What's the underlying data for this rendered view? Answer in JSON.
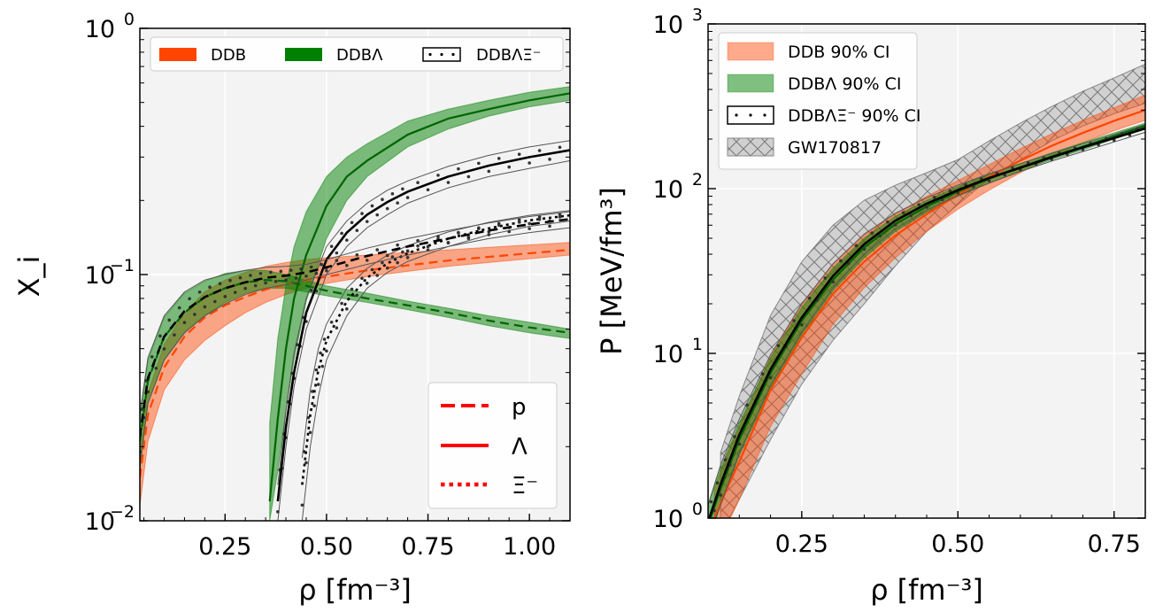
{
  "chart_data": [
    {
      "type": "line",
      "xlabel": "ρ [fm⁻³]",
      "ylabel": "X_i",
      "xlim": [
        0.04,
        1.1
      ],
      "ylim": [
        0.01,
        1.0
      ],
      "yscale": "log",
      "grid": true,
      "xticks": [
        0.25,
        0.5,
        0.75,
        1.0
      ],
      "xtick_labels": [
        "0.25",
        "0.50",
        "0.75",
        "1.00"
      ],
      "yticks": [
        0.01,
        0.1,
        1.0
      ],
      "ytick_labels": [
        {
          "base": "10",
          "exp": "−2"
        },
        {
          "base": "10",
          "exp": "−1"
        },
        {
          "base": "10",
          "exp": "0"
        }
      ],
      "legend_models": {
        "placement": "top",
        "entries": [
          {
            "label": "DDB",
            "color": "#ff4500",
            "style": "filled band"
          },
          {
            "label": "DDBΛ",
            "color": "#008000",
            "style": "filled band"
          },
          {
            "label": "DDBΛΞ⁻",
            "color": "#000000",
            "style": "dotted band"
          }
        ]
      },
      "legend_species": {
        "placement": "lower-right",
        "entries": [
          {
            "label": "p",
            "linestyle": "dashed",
            "color": "#ff0000"
          },
          {
            "label": "Λ",
            "linestyle": "solid",
            "color": "#ff0000"
          },
          {
            "label": "Ξ⁻",
            "linestyle": "dotted",
            "color": "#ff0000"
          }
        ]
      },
      "bands": [
        {
          "model": "DDB",
          "species": "p",
          "color": "#ff4500",
          "x": [
            0.04,
            0.06,
            0.1,
            0.15,
            0.2,
            0.25,
            0.3,
            0.35,
            0.4,
            0.45,
            0.5,
            0.6,
            0.7,
            0.8,
            0.9,
            1.0,
            1.1
          ],
          "low": [
            0.0115,
            0.021,
            0.034,
            0.045,
            0.054,
            0.062,
            0.07,
            0.077,
            0.083,
            0.088,
            0.092,
            0.098,
            0.103,
            0.108,
            0.112,
            0.116,
            0.12
          ],
          "high": [
            0.019,
            0.033,
            0.052,
            0.07,
            0.085,
            0.095,
            0.102,
            0.108,
            0.112,
            0.115,
            0.117,
            0.12,
            0.123,
            0.126,
            0.129,
            0.132,
            0.135
          ],
          "mid": [
            0.015,
            0.027,
            0.042,
            0.056,
            0.067,
            0.075,
            0.081,
            0.087,
            0.091,
            0.095,
            0.098,
            0.104,
            0.109,
            0.114,
            0.118,
            0.122,
            0.126
          ]
        },
        {
          "model": "DDBΛ",
          "species": "p",
          "color": "#008000",
          "x": [
            0.04,
            0.06,
            0.1,
            0.15,
            0.2,
            0.25,
            0.3,
            0.35,
            0.4,
            0.45,
            0.5,
            0.6,
            0.7,
            0.8,
            0.9,
            1.0,
            1.1
          ],
          "low": [
            0.016,
            0.03,
            0.045,
            0.058,
            0.068,
            0.077,
            0.084,
            0.088,
            0.088,
            0.085,
            0.082,
            0.077,
            0.072,
            0.067,
            0.062,
            0.058,
            0.055
          ],
          "high": [
            0.026,
            0.045,
            0.067,
            0.084,
            0.094,
            0.101,
            0.104,
            0.104,
            0.1,
            0.095,
            0.09,
            0.084,
            0.078,
            0.073,
            0.068,
            0.064,
            0.06
          ],
          "mid": [
            0.021,
            0.037,
            0.056,
            0.07,
            0.081,
            0.088,
            0.093,
            0.095,
            0.094,
            0.09,
            0.086,
            0.08,
            0.075,
            0.07,
            0.065,
            0.061,
            0.058
          ]
        },
        {
          "model": "DDBΛ",
          "species": "Λ",
          "color": "#008000",
          "x": [
            0.36,
            0.38,
            0.4,
            0.42,
            0.45,
            0.5,
            0.55,
            0.6,
            0.7,
            0.8,
            0.9,
            1.0,
            1.1
          ],
          "low": [
            0.01,
            0.016,
            0.028,
            0.045,
            0.078,
            0.14,
            0.2,
            0.25,
            0.33,
            0.39,
            0.44,
            0.48,
            0.51
          ],
          "high": [
            0.025,
            0.055,
            0.09,
            0.13,
            0.18,
            0.25,
            0.3,
            0.34,
            0.42,
            0.47,
            0.51,
            0.55,
            0.58
          ],
          "mid": [
            0.012,
            0.026,
            0.05,
            0.08,
            0.12,
            0.19,
            0.25,
            0.29,
            0.37,
            0.43,
            0.47,
            0.51,
            0.545
          ]
        },
        {
          "model": "DDBΛΞ⁻",
          "species": "Λ",
          "color": "#000000",
          "x": [
            0.38,
            0.4,
            0.42,
            0.45,
            0.5,
            0.55,
            0.6,
            0.65,
            0.7,
            0.8,
            0.9,
            1.0,
            1.1
          ],
          "low": [
            0.01,
            0.02,
            0.035,
            0.06,
            0.1,
            0.13,
            0.155,
            0.175,
            0.195,
            0.225,
            0.25,
            0.27,
            0.29
          ],
          "high": [
            0.014,
            0.028,
            0.048,
            0.08,
            0.13,
            0.165,
            0.195,
            0.22,
            0.24,
            0.275,
            0.305,
            0.33,
            0.35
          ],
          "mid": [
            0.012,
            0.024,
            0.04,
            0.07,
            0.115,
            0.148,
            0.175,
            0.197,
            0.217,
            0.25,
            0.277,
            0.3,
            0.32
          ]
        },
        {
          "model": "DDBΛΞ⁻",
          "species": "Ξ⁻",
          "color": "#000000",
          "x": [
            0.44,
            0.46,
            0.48,
            0.5,
            0.55,
            0.6,
            0.65,
            0.7,
            0.8,
            0.9,
            1.0,
            1.1
          ],
          "low": [
            0.01,
            0.02,
            0.032,
            0.045,
            0.068,
            0.088,
            0.102,
            0.113,
            0.13,
            0.145,
            0.157,
            0.165
          ],
          "high": [
            0.018,
            0.034,
            0.05,
            0.063,
            0.088,
            0.106,
            0.12,
            0.131,
            0.149,
            0.163,
            0.174,
            0.182
          ],
          "mid": [
            0.014,
            0.027,
            0.041,
            0.054,
            0.078,
            0.097,
            0.111,
            0.122,
            0.14,
            0.154,
            0.166,
            0.174
          ]
        },
        {
          "model": "DDBΛΞ⁻",
          "species": "p",
          "color": "#000000",
          "x": [
            0.04,
            0.06,
            0.1,
            0.15,
            0.2,
            0.25,
            0.3,
            0.35,
            0.4,
            0.45,
            0.5,
            0.6,
            0.7,
            0.8,
            0.9,
            1.0,
            1.1
          ],
          "low": [
            0.017,
            0.03,
            0.045,
            0.058,
            0.068,
            0.076,
            0.083,
            0.088,
            0.091,
            0.095,
            0.1,
            0.11,
            0.12,
            0.13,
            0.14,
            0.148,
            0.155
          ],
          "high": [
            0.027,
            0.046,
            0.068,
            0.085,
            0.095,
            0.1,
            0.104,
            0.107,
            0.108,
            0.11,
            0.115,
            0.128,
            0.14,
            0.151,
            0.162,
            0.172,
            0.18
          ],
          "mid": [
            0.022,
            0.038,
            0.056,
            0.071,
            0.081,
            0.088,
            0.093,
            0.097,
            0.099,
            0.102,
            0.107,
            0.119,
            0.13,
            0.14,
            0.151,
            0.16,
            0.168
          ]
        }
      ]
    },
    {
      "type": "area",
      "xlabel": "ρ [fm⁻³]",
      "ylabel": "P [MeV/fm³]",
      "xlim": [
        0.1,
        0.8
      ],
      "ylim": [
        1,
        1000
      ],
      "yscale": "log",
      "grid": true,
      "xticks": [
        0.25,
        0.5,
        0.75
      ],
      "xtick_labels": [
        "0.25",
        "0.50",
        "0.75"
      ],
      "yticks": [
        1,
        10,
        100,
        1000
      ],
      "ytick_labels": [
        {
          "base": "10",
          "exp": "0"
        },
        {
          "base": "10",
          "exp": "1"
        },
        {
          "base": "10",
          "exp": "2"
        },
        {
          "base": "10",
          "exp": "3"
        }
      ],
      "legend": {
        "placement": "top-left",
        "entries": [
          {
            "label": "DDB 90% CI",
            "color": "#ff4500",
            "style": "filled band"
          },
          {
            "label": "DDBΛ 90% CI",
            "color": "#008000",
            "style": "filled band"
          },
          {
            "label": "DDBΛΞ⁻ 90% CI",
            "color": "#000000",
            "style": "dotted band"
          },
          {
            "label": "GW170817",
            "color": "#808080",
            "style": "hatched band"
          }
        ]
      },
      "bands": [
        {
          "name": "GW170817",
          "color": "#808080",
          "x": [
            0.12,
            0.15,
            0.2,
            0.25,
            0.3,
            0.35,
            0.4,
            0.45,
            0.5,
            0.55,
            0.6,
            0.65,
            0.7,
            0.75,
            0.8
          ],
          "low": [
            0.8,
            1.3,
            3,
            6.5,
            12,
            20,
            34,
            55,
            80,
            115,
            150,
            195,
            240,
            285,
            330
          ],
          "high": [
            2.5,
            5.5,
            17,
            36,
            60,
            85,
            105,
            125,
            150,
            195,
            250,
            315,
            390,
            470,
            570
          ]
        },
        {
          "name": "DDB 90% CI",
          "color": "#ff4500",
          "x": [
            0.11,
            0.13,
            0.15,
            0.2,
            0.25,
            0.3,
            0.35,
            0.4,
            0.45,
            0.5,
            0.55,
            0.6,
            0.65,
            0.7,
            0.75,
            0.8
          ],
          "low": [
            0.6,
            0.9,
            1.3,
            3.6,
            7.5,
            15,
            25,
            38,
            55,
            75,
            98,
            125,
            155,
            190,
            225,
            260
          ],
          "high": [
            1.5,
            2.4,
            3.6,
            9.5,
            20,
            35,
            52,
            70,
            90,
            112,
            140,
            175,
            215,
            260,
            310,
            370
          ],
          "mid": [
            1,
            1.5,
            2.2,
            6,
            12.5,
            23,
            36,
            52,
            70,
            92,
            118,
            148,
            182,
            218,
            258,
            300
          ]
        },
        {
          "name": "DDBΛ 90% CI",
          "color": "#008000",
          "x": [
            0.1,
            0.12,
            0.15,
            0.2,
            0.25,
            0.3,
            0.35,
            0.4,
            0.45,
            0.5,
            0.55,
            0.6,
            0.65,
            0.7,
            0.75,
            0.8
          ],
          "low": [
            0.7,
            1.2,
            2.4,
            6.2,
            13,
            24,
            38,
            55,
            72,
            90,
            108,
            128,
            150,
            172,
            200,
            230
          ],
          "high": [
            1.2,
            2,
            3.8,
            9.4,
            19,
            33,
            50,
            68,
            85,
            103,
            122,
            142,
            165,
            190,
            218,
            250
          ],
          "mid": [
            0.9,
            1.5,
            3,
            7.6,
            15.8,
            28,
            44,
            61,
            78,
            96,
            115,
            135,
            157,
            180,
            208,
            240
          ]
        },
        {
          "name": "DDBΛΞ⁻ 90% CI",
          "color": "#000000",
          "x": [
            0.1,
            0.12,
            0.15,
            0.2,
            0.25,
            0.3,
            0.35,
            0.4,
            0.45,
            0.5,
            0.55,
            0.6,
            0.65,
            0.7,
            0.75,
            0.8
          ],
          "low": [
            0.75,
            1.2,
            2.5,
            6.4,
            13.5,
            25,
            40,
            57,
            74,
            91,
            108,
            127,
            147,
            168,
            192,
            220
          ],
          "high": [
            1.2,
            2.1,
            4,
            9.8,
            20,
            35,
            53,
            71,
            88,
            105,
            123,
            142,
            163,
            187,
            213,
            245
          ],
          "mid": [
            0.95,
            1.6,
            3.2,
            8,
            16.5,
            29.5,
            46,
            64,
            81,
            98,
            116,
            134,
            155,
            178,
            203,
            232
          ]
        }
      ]
    }
  ]
}
